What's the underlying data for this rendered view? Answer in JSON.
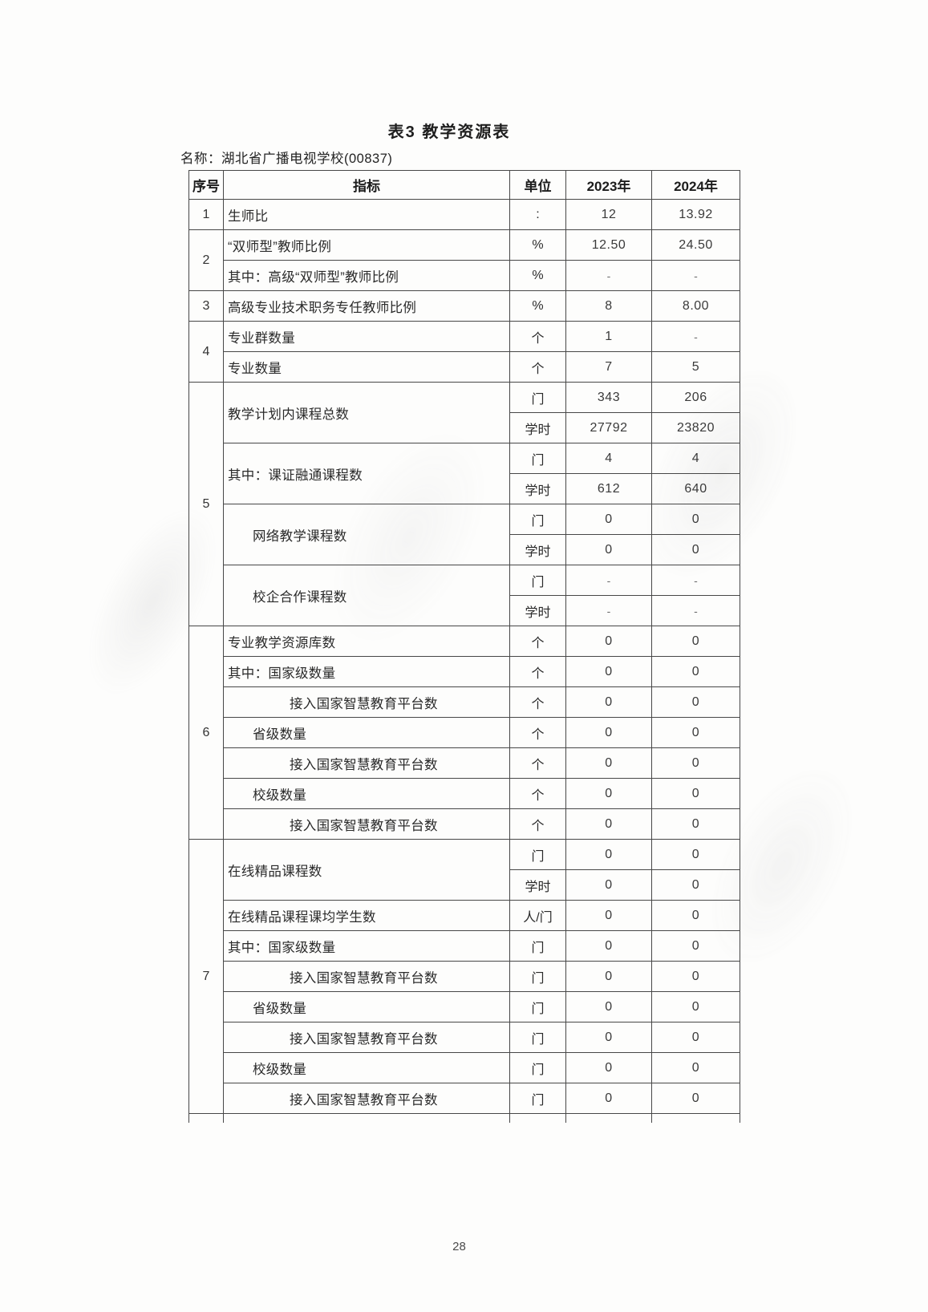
{
  "page": {
    "title": "表3 教学资源表",
    "school_label": "名称：湖北省广播电视学校(00837)",
    "page_number": "28"
  },
  "table": {
    "headers": [
      "序号",
      "指标",
      "单位",
      "2023年",
      "2024年"
    ],
    "rows": [
      {
        "cells": [
          {
            "t": "1",
            "cls": "num"
          },
          {
            "t": "生师比",
            "cls": "lbl ind0"
          },
          {
            "t": ":",
            "cls": "ctr"
          },
          {
            "t": "12",
            "cls": "ctr val"
          },
          {
            "t": "13.92",
            "cls": "ctr val"
          }
        ]
      },
      {
        "cells": [
          {
            "t": "2",
            "rs": 2,
            "cls": "num"
          },
          {
            "t": "“双师型”教师比例",
            "cls": "lbl ind0"
          },
          {
            "t": "%",
            "cls": "ctr"
          },
          {
            "t": "12.50",
            "cls": "ctr val"
          },
          {
            "t": "24.50",
            "cls": "ctr val"
          }
        ]
      },
      {
        "cells": [
          {
            "t": "其中：高级“双师型”教师比例",
            "cls": "lbl ind0"
          },
          {
            "t": "%",
            "cls": "ctr"
          },
          {
            "t": "-",
            "cls": "ctr dash"
          },
          {
            "t": "-",
            "cls": "ctr dash"
          }
        ]
      },
      {
        "cells": [
          {
            "t": "3",
            "cls": "num"
          },
          {
            "t": "高级专业技术职务专任教师比例",
            "cls": "lbl ind0"
          },
          {
            "t": "%",
            "cls": "ctr"
          },
          {
            "t": "8",
            "cls": "ctr val"
          },
          {
            "t": "8.00",
            "cls": "ctr val"
          }
        ]
      },
      {
        "cells": [
          {
            "t": "4",
            "rs": 2,
            "cls": "num"
          },
          {
            "t": "专业群数量",
            "cls": "lbl ind0"
          },
          {
            "t": "个",
            "cls": "ctr"
          },
          {
            "t": "1",
            "cls": "ctr val"
          },
          {
            "t": "-",
            "cls": "ctr dash"
          }
        ]
      },
      {
        "cells": [
          {
            "t": "专业数量",
            "cls": "lbl ind0"
          },
          {
            "t": "个",
            "cls": "ctr"
          },
          {
            "t": "7",
            "cls": "ctr val"
          },
          {
            "t": "5",
            "cls": "ctr val"
          }
        ]
      },
      {
        "cells": [
          {
            "t": "5",
            "rs": 8,
            "cls": "num"
          },
          {
            "t": "教学计划内课程总数",
            "rs": 2,
            "cls": "lbl ind0"
          },
          {
            "t": "门",
            "cls": "ctr"
          },
          {
            "t": "343",
            "cls": "ctr val"
          },
          {
            "t": "206",
            "cls": "ctr val"
          }
        ]
      },
      {
        "cells": [
          {
            "t": "学时",
            "cls": "ctr"
          },
          {
            "t": "27792",
            "cls": "ctr val"
          },
          {
            "t": "23820",
            "cls": "ctr val"
          }
        ]
      },
      {
        "cells": [
          {
            "t": "其中：课证融通课程数",
            "rs": 2,
            "cls": "lbl ind0"
          },
          {
            "t": "门",
            "cls": "ctr"
          },
          {
            "t": "4",
            "cls": "ctr val"
          },
          {
            "t": "4",
            "cls": "ctr val"
          }
        ]
      },
      {
        "cells": [
          {
            "t": "学时",
            "cls": "ctr"
          },
          {
            "t": "612",
            "cls": "ctr val"
          },
          {
            "t": "640",
            "cls": "ctr val"
          }
        ]
      },
      {
        "cells": [
          {
            "t": "网络教学课程数",
            "rs": 2,
            "cls": "lbl ind1"
          },
          {
            "t": "门",
            "cls": "ctr"
          },
          {
            "t": "0",
            "cls": "ctr val"
          },
          {
            "t": "0",
            "cls": "ctr val"
          }
        ]
      },
      {
        "cells": [
          {
            "t": "学时",
            "cls": "ctr"
          },
          {
            "t": "0",
            "cls": "ctr val"
          },
          {
            "t": "0",
            "cls": "ctr val"
          }
        ]
      },
      {
        "cells": [
          {
            "t": "校企合作课程数",
            "rs": 2,
            "cls": "lbl ind1"
          },
          {
            "t": "门",
            "cls": "ctr"
          },
          {
            "t": "-",
            "cls": "ctr dash"
          },
          {
            "t": "-",
            "cls": "ctr dash"
          }
        ]
      },
      {
        "cells": [
          {
            "t": "学时",
            "cls": "ctr"
          },
          {
            "t": "-",
            "cls": "ctr dash"
          },
          {
            "t": "-",
            "cls": "ctr dash"
          }
        ]
      },
      {
        "cells": [
          {
            "t": "6",
            "rs": 7,
            "cls": "num"
          },
          {
            "t": "专业教学资源库数",
            "cls": "lbl ind0"
          },
          {
            "t": "个",
            "cls": "ctr"
          },
          {
            "t": "0",
            "cls": "ctr val"
          },
          {
            "t": "0",
            "cls": "ctr val"
          }
        ]
      },
      {
        "cells": [
          {
            "t": "其中：国家级数量",
            "cls": "lbl ind0"
          },
          {
            "t": "个",
            "cls": "ctr"
          },
          {
            "t": "0",
            "cls": "ctr val"
          },
          {
            "t": "0",
            "cls": "ctr val"
          }
        ]
      },
      {
        "cells": [
          {
            "t": "接入国家智慧教育平台数",
            "cls": "lbl ind2"
          },
          {
            "t": "个",
            "cls": "ctr"
          },
          {
            "t": "0",
            "cls": "ctr val"
          },
          {
            "t": "0",
            "cls": "ctr val"
          }
        ]
      },
      {
        "cells": [
          {
            "t": "省级数量",
            "cls": "lbl ind1"
          },
          {
            "t": "个",
            "cls": "ctr"
          },
          {
            "t": "0",
            "cls": "ctr val"
          },
          {
            "t": "0",
            "cls": "ctr val"
          }
        ]
      },
      {
        "cells": [
          {
            "t": "接入国家智慧教育平台数",
            "cls": "lbl ind2"
          },
          {
            "t": "个",
            "cls": "ctr"
          },
          {
            "t": "0",
            "cls": "ctr val"
          },
          {
            "t": "0",
            "cls": "ctr val"
          }
        ]
      },
      {
        "cells": [
          {
            "t": "校级数量",
            "cls": "lbl ind1"
          },
          {
            "t": "个",
            "cls": "ctr"
          },
          {
            "t": "0",
            "cls": "ctr val"
          },
          {
            "t": "0",
            "cls": "ctr val"
          }
        ]
      },
      {
        "cells": [
          {
            "t": "接入国家智慧教育平台数",
            "cls": "lbl ind2"
          },
          {
            "t": "个",
            "cls": "ctr"
          },
          {
            "t": "0",
            "cls": "ctr val"
          },
          {
            "t": "0",
            "cls": "ctr val"
          }
        ]
      },
      {
        "cells": [
          {
            "t": "7",
            "rs": 9,
            "cls": "num"
          },
          {
            "t": "在线精品课程数",
            "rs": 2,
            "cls": "lbl ind0"
          },
          {
            "t": "门",
            "cls": "ctr"
          },
          {
            "t": "0",
            "cls": "ctr val"
          },
          {
            "t": "0",
            "cls": "ctr val"
          }
        ]
      },
      {
        "cells": [
          {
            "t": "学时",
            "cls": "ctr"
          },
          {
            "t": "0",
            "cls": "ctr val"
          },
          {
            "t": "0",
            "cls": "ctr val"
          }
        ]
      },
      {
        "cells": [
          {
            "t": "在线精品课程课均学生数",
            "cls": "lbl ind0"
          },
          {
            "t": "人/门",
            "cls": "ctr"
          },
          {
            "t": "0",
            "cls": "ctr val"
          },
          {
            "t": "0",
            "cls": "ctr val"
          }
        ]
      },
      {
        "cells": [
          {
            "t": "其中：国家级数量",
            "cls": "lbl ind0"
          },
          {
            "t": "门",
            "cls": "ctr"
          },
          {
            "t": "0",
            "cls": "ctr val"
          },
          {
            "t": "0",
            "cls": "ctr val"
          }
        ]
      },
      {
        "cells": [
          {
            "t": "接入国家智慧教育平台数",
            "cls": "lbl ind2"
          },
          {
            "t": "门",
            "cls": "ctr"
          },
          {
            "t": "0",
            "cls": "ctr val"
          },
          {
            "t": "0",
            "cls": "ctr val"
          }
        ]
      },
      {
        "cells": [
          {
            "t": "省级数量",
            "cls": "lbl ind1"
          },
          {
            "t": "门",
            "cls": "ctr"
          },
          {
            "t": "0",
            "cls": "ctr val"
          },
          {
            "t": "0",
            "cls": "ctr val"
          }
        ]
      },
      {
        "cells": [
          {
            "t": "接入国家智慧教育平台数",
            "cls": "lbl ind2"
          },
          {
            "t": "门",
            "cls": "ctr"
          },
          {
            "t": "0",
            "cls": "ctr val"
          },
          {
            "t": "0",
            "cls": "ctr val"
          }
        ]
      },
      {
        "cells": [
          {
            "t": "校级数量",
            "cls": "lbl ind1"
          },
          {
            "t": "门",
            "cls": "ctr"
          },
          {
            "t": "0",
            "cls": "ctr val"
          },
          {
            "t": "0",
            "cls": "ctr val"
          }
        ]
      },
      {
        "cells": [
          {
            "t": "接入国家智慧教育平台数",
            "cls": "lbl ind2"
          },
          {
            "t": "门",
            "cls": "ctr"
          },
          {
            "t": "0",
            "cls": "ctr val"
          },
          {
            "t": "0",
            "cls": "ctr val"
          }
        ]
      },
      {
        "stub": true,
        "cells": [
          {
            "t": "",
            "cls": "ctr"
          },
          {
            "t": "",
            "cls": "ctr"
          },
          {
            "t": "",
            "cls": "ctr"
          },
          {
            "t": "",
            "cls": "ctr"
          },
          {
            "t": "",
            "cls": "ctr"
          }
        ]
      }
    ]
  }
}
